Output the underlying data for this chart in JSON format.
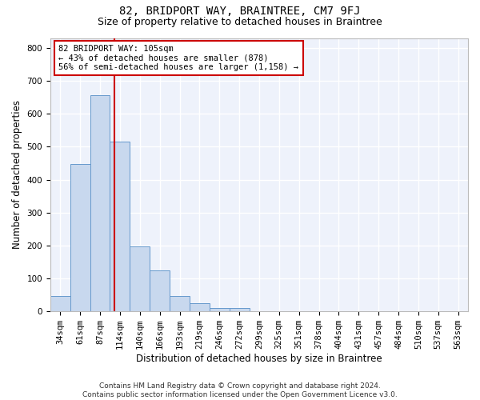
{
  "title1": "82, BRIDPORT WAY, BRAINTREE, CM7 9FJ",
  "title2": "Size of property relative to detached houses in Braintree",
  "xlabel": "Distribution of detached houses by size in Braintree",
  "ylabel": "Number of detached properties",
  "categories": [
    "34sqm",
    "61sqm",
    "87sqm",
    "114sqm",
    "140sqm",
    "166sqm",
    "193sqm",
    "219sqm",
    "246sqm",
    "272sqm",
    "299sqm",
    "325sqm",
    "351sqm",
    "378sqm",
    "404sqm",
    "431sqm",
    "457sqm",
    "484sqm",
    "510sqm",
    "537sqm",
    "563sqm"
  ],
  "values": [
    47,
    447,
    657,
    515,
    197,
    125,
    47,
    25,
    10,
    10,
    0,
    0,
    0,
    0,
    0,
    0,
    0,
    0,
    0,
    0,
    0
  ],
  "bar_color": "#c8d8ee",
  "bar_edge_color": "#6699cc",
  "vline_x": 2.72,
  "vline_color": "#cc0000",
  "annotation_text": "82 BRIDPORT WAY: 105sqm\n← 43% of detached houses are smaller (878)\n56% of semi-detached houses are larger (1,158) →",
  "annotation_box_color": "#ffffff",
  "annotation_box_edge_color": "#cc0000",
  "ylim": [
    0,
    830
  ],
  "yticks": [
    0,
    100,
    200,
    300,
    400,
    500,
    600,
    700,
    800
  ],
  "plot_bg_color": "#eef2fb",
  "fig_bg_color": "#ffffff",
  "grid_color": "#ffffff",
  "footer": "Contains HM Land Registry data © Crown copyright and database right 2024.\nContains public sector information licensed under the Open Government Licence v3.0.",
  "title1_fontsize": 10,
  "title2_fontsize": 9,
  "xlabel_fontsize": 8.5,
  "ylabel_fontsize": 8.5,
  "tick_fontsize": 7.5,
  "annotation_fontsize": 7.5,
  "footer_fontsize": 6.5
}
